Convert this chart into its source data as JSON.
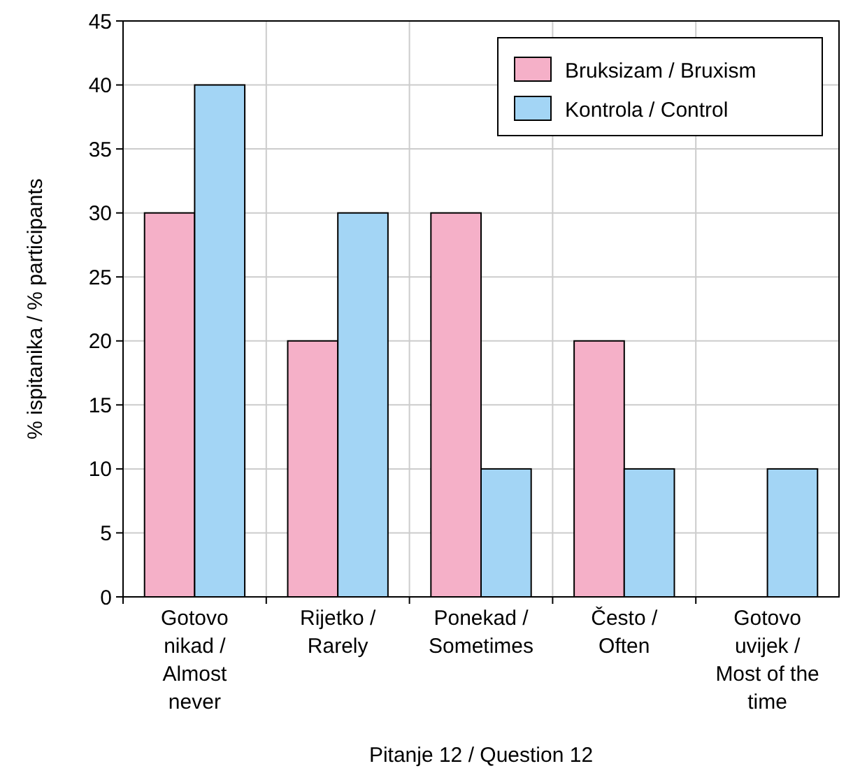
{
  "chart_data": {
    "type": "bar",
    "xlabel": "Pitanje 12 / Question 12",
    "ylabel": "% ispitanika / % participants",
    "categories": [
      "Gotovo nikad / Almost never",
      "Rijetko / Rarely",
      "Ponekad / Sometimes",
      "Često / Often",
      "Gotovo uvijek / Most of the time"
    ],
    "series": [
      {
        "name": "Bruksizam / Bruxism",
        "color": "#f5b0c8",
        "values": [
          30,
          20,
          30,
          20,
          0
        ]
      },
      {
        "name": "Kontrola / Control",
        "color": "#a3d5f5",
        "values": [
          40,
          30,
          10,
          10,
          10
        ]
      }
    ],
    "ylim": [
      0,
      45
    ],
    "yticks": [
      0,
      5,
      10,
      15,
      20,
      25,
      30,
      35,
      40,
      45
    ],
    "grid": true,
    "legend": "top right"
  }
}
